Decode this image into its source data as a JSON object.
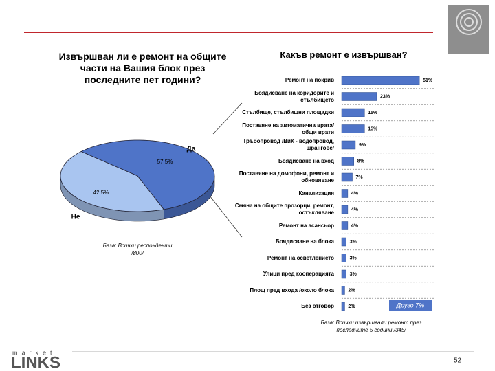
{
  "page": {
    "logo_top": "market",
    "logo_main": "LINKS",
    "page_number": "52"
  },
  "chart_data": [
    {
      "type": "pie",
      "title": "Извършван ли е ремонт на общите части на Вашия блок през последните пет години?",
      "categories": [
        "Да",
        "Не"
      ],
      "values": [
        57.5,
        42.5
      ],
      "value_labels": [
        "57.5%",
        "42.5%"
      ],
      "colors": [
        "#4f74c8",
        "#a9c5f0"
      ],
      "note": "База: Всички респонденти /800/"
    },
    {
      "type": "bar",
      "orientation": "horizontal",
      "title": "Какъв ремонт е извършван?",
      "categories": [
        "Ремонт на покрив",
        "Боядисване на коридорите и стълбището",
        "Стълбище, стълбищни площадки",
        "Поставяне на автоматична врата/общи врати",
        "Тръбопровод /ВиК - водопровод, шрангове/",
        "Боядисване на вход",
        "Поставяне на домофони, ремонт и обновяване",
        "Канализация",
        "Смяна на общите прозорци, ремонт, остъкляване",
        "Ремонт на асансьор",
        "Боядисване на блока",
        "Ремонт на осветлението",
        "Улици пред кооперацията",
        "Площ пред входа /около блока",
        "Без отговор"
      ],
      "values": [
        51,
        23,
        15,
        15,
        9,
        8,
        7,
        4,
        4,
        4,
        3,
        3,
        3,
        2,
        2
      ],
      "value_labels": [
        "51%",
        "23%",
        "15%",
        "15%",
        "9%",
        "8%",
        "7%",
        "4%",
        "4%",
        "4%",
        "3%",
        "3%",
        "3%",
        "2%",
        "2%"
      ],
      "color": "#4f74c8",
      "xlim": [
        0,
        55
      ],
      "annotation": "Друго 7%",
      "note": "База: Всички извършвали ремонт през последните 5 години /345/"
    }
  ]
}
